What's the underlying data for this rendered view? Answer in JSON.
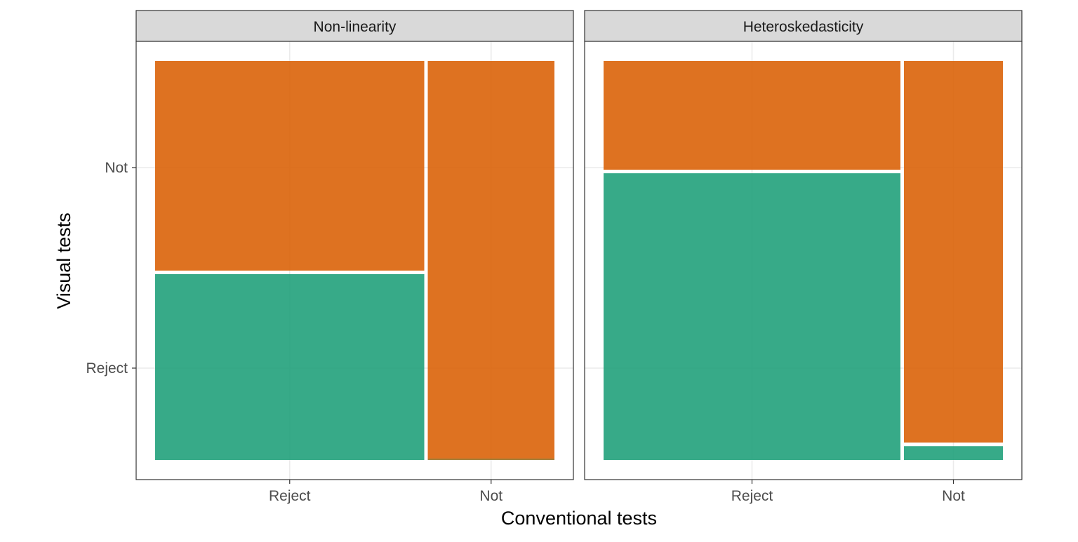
{
  "chart_data": {
    "type": "mosaic",
    "xlabel": "Conventional tests",
    "ylabel": "Visual tests",
    "x_categories": [
      "Reject",
      "Not"
    ],
    "y_categories": [
      "Reject",
      "Not"
    ],
    "colors": {
      "Reject": "#1b9e77",
      "Not": "#d95f02"
    },
    "grid": true,
    "legend": "none",
    "panels": [
      {
        "title": "Non-linearity",
        "x_widths": [
          0.68,
          0.32
        ],
        "columns": [
          {
            "x": "Reject",
            "fractions": {
              "Reject": 0.47,
              "Not": 0.53
            }
          },
          {
            "x": "Not",
            "fractions": {
              "Reject": 0.0,
              "Not": 1.0
            }
          }
        ]
      },
      {
        "title": "Heteroskedasticity",
        "x_widths": [
          0.75,
          0.25
        ],
        "columns": [
          {
            "x": "Reject",
            "fractions": {
              "Reject": 0.725,
              "Not": 0.275
            }
          },
          {
            "x": "Not",
            "fractions": {
              "Reject": 0.035,
              "Not": 0.965
            }
          }
        ]
      }
    ]
  }
}
